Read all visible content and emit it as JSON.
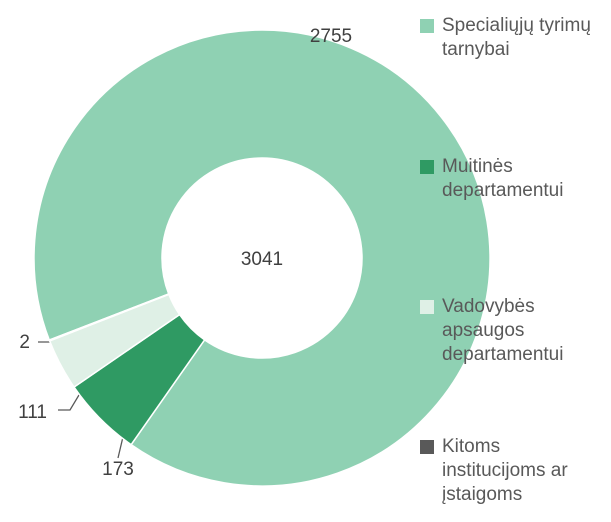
{
  "chart_data": {
    "type": "donut",
    "categories": [
      "Specialiųjų tyrimų tarnybai",
      "Muitinės departamentui",
      "Vadovybės apsaugos departamentui",
      "Kitoms institucijoms ar įstaigoms"
    ],
    "values": [
      2755,
      173,
      111,
      2
    ],
    "colors": [
      "#8fd1b3",
      "#2f9a63",
      "#dff0e6",
      "#595959"
    ],
    "center_label": "3041",
    "legend": "right"
  }
}
